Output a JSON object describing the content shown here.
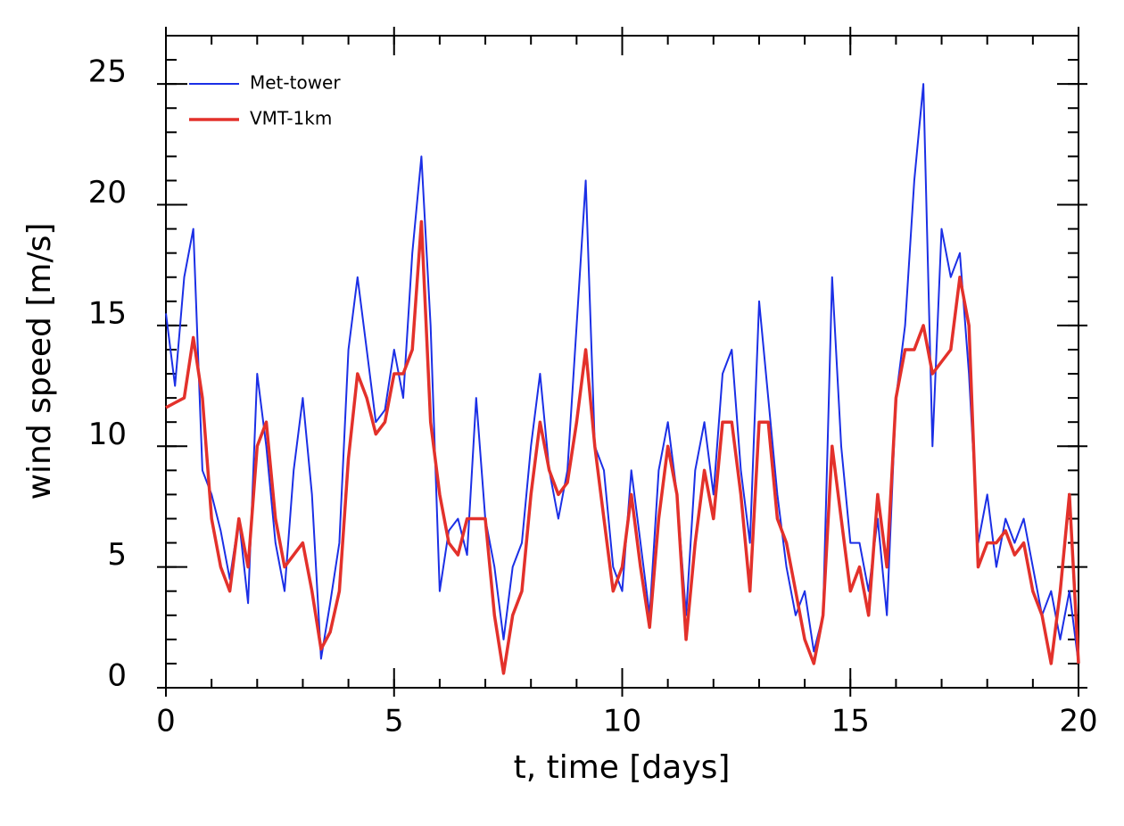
{
  "chart_data": {
    "type": "line",
    "x_label": "t, time [days]",
    "y_label": "wind speed [m/s]",
    "x": [
      0,
      0.2,
      0.4,
      0.6,
      0.8,
      1,
      1.2,
      1.4,
      1.6,
      1.8,
      2,
      2.2,
      2.4,
      2.6,
      2.8,
      3,
      3.2,
      3.4,
      3.6,
      3.8,
      4,
      4.2,
      4.4,
      4.6,
      4.8,
      5,
      5.2,
      5.4,
      5.6,
      5.8,
      6,
      6.2,
      6.4,
      6.6,
      6.8,
      7,
      7.2,
      7.4,
      7.6,
      7.8,
      8,
      8.2,
      8.4,
      8.6,
      8.8,
      9,
      9.2,
      9.4,
      9.6,
      9.8,
      10,
      10.2,
      10.4,
      10.6,
      10.8,
      11,
      11.2,
      11.4,
      11.6,
      11.8,
      12,
      12.2,
      12.4,
      12.6,
      12.8,
      13,
      13.2,
      13.4,
      13.6,
      13.8,
      14,
      14.2,
      14.4,
      14.6,
      14.8,
      15,
      15.2,
      15.4,
      15.6,
      15.8,
      16,
      16.2,
      16.4,
      16.6,
      16.8,
      17,
      17.2,
      17.4,
      17.6,
      17.8,
      18,
      18.2,
      18.4,
      18.6,
      18.8,
      19,
      19.2,
      19.4,
      19.6,
      19.8,
      20
    ],
    "series": [
      {
        "name": "Met-tower",
        "color": "#1b2fe6",
        "values": [
          15.5,
          12.5,
          17,
          19,
          9,
          8,
          6.5,
          4.5,
          7,
          3.5,
          13,
          10,
          6,
          4,
          9,
          12,
          8,
          1.2,
          3.5,
          6,
          14,
          17,
          14,
          11,
          11.5,
          14,
          12,
          18,
          22,
          15,
          4,
          6.5,
          7,
          5.5,
          12,
          7,
          5,
          2,
          5,
          6,
          10,
          13,
          9,
          7,
          9,
          15,
          21,
          10,
          9,
          5,
          4,
          9,
          6,
          3,
          9,
          11,
          8,
          3,
          9,
          11,
          8,
          13,
          14,
          9,
          6,
          16,
          12,
          8,
          5,
          3,
          4,
          1.5,
          3,
          17,
          10,
          6,
          6,
          4,
          7,
          3,
          12,
          15,
          21,
          25,
          10,
          19,
          17,
          18,
          13,
          6,
          8,
          5,
          7,
          6,
          7,
          5,
          3,
          4,
          2,
          4,
          1
        ]
      },
      {
        "name": "VMT-1km",
        "color": "#e3312b",
        "values": [
          11.6,
          11.8,
          12,
          14.5,
          12,
          7,
          5,
          4,
          7,
          5,
          10,
          11,
          7,
          5,
          5.5,
          6,
          4,
          1.6,
          2.3,
          4,
          9.5,
          13,
          12,
          10.5,
          11,
          13,
          13,
          14,
          19.3,
          11,
          8,
          6,
          5.5,
          7,
          7,
          7,
          3,
          0.6,
          3,
          4,
          8,
          11,
          9,
          8,
          8.5,
          11,
          14,
          10,
          7,
          4,
          5,
          8,
          5,
          2.5,
          7,
          10,
          8,
          2,
          6,
          9,
          7,
          11,
          11,
          8,
          4,
          11,
          11,
          7,
          6,
          4,
          2,
          1,
          3,
          10,
          7,
          4,
          5,
          3,
          8,
          5,
          12,
          14,
          14,
          15,
          13,
          13.5,
          14,
          17,
          15,
          5,
          6,
          6,
          6.5,
          5.5,
          6,
          4,
          3,
          1,
          4,
          8,
          1
        ]
      }
    ],
    "xlim": [
      0,
      20
    ],
    "xticks": [
      0,
      5,
      10,
      15,
      20
    ],
    "ylim": [
      0,
      27
    ],
    "yticks": [
      0,
      5,
      10,
      15,
      20,
      25
    ],
    "x_minor_step": 1,
    "y_minor_step": 1,
    "legend": "upper left",
    "grid": false
  }
}
